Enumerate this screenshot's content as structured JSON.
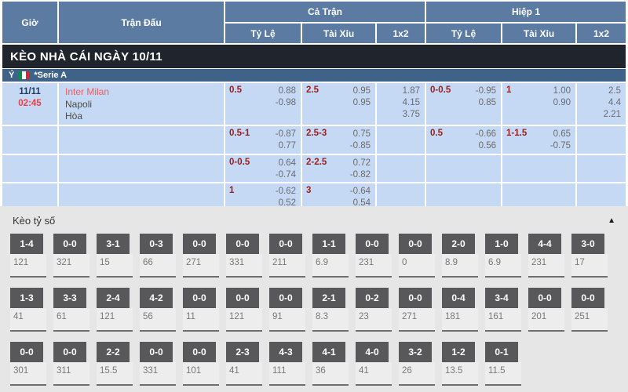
{
  "table_header": {
    "time": "Giờ",
    "match": "Trận Đấu",
    "full_match": "Cả Trận",
    "first_half": "Hiệp 1",
    "odds": "Tỷ Lệ",
    "over_under": "Tài Xỉu",
    "one_x_two": "1x2"
  },
  "banner": {
    "title": "KÈO NHÀ CÁI NGÀY 10/11"
  },
  "league": {
    "country": "Ý",
    "flag": "italy-flag",
    "name": "*Serie A"
  },
  "match": {
    "date": "11/11",
    "time": "02:45",
    "home": "Inter Milan",
    "away": "Napoli",
    "draw": "Hòa"
  },
  "odds_rows": [
    {
      "ft_hdp_line": "0.5",
      "ft_hdp_1": "0.88",
      "ft_hdp_2": "-0.98",
      "ft_ou_line": "2.5",
      "ft_ou_1": "0.95",
      "ft_ou_2": "0.95",
      "ft_1x2": [
        "1.87",
        "4.15",
        "3.75"
      ],
      "h1_hdp_line": "0-0.5",
      "h1_hdp_1": "-0.95",
      "h1_hdp_2": "0.85",
      "h1_ou_line": "1",
      "h1_ou_1": "1.00",
      "h1_ou_2": "0.90",
      "h1_1x2": [
        "2.5",
        "4.4",
        "2.21"
      ]
    },
    {
      "ft_hdp_line": "0.5-1",
      "ft_hdp_1": "-0.87",
      "ft_hdp_2": "0.77",
      "ft_ou_line": "2.5-3",
      "ft_ou_1": "0.75",
      "ft_ou_2": "-0.85",
      "h1_hdp_line": "0.5",
      "h1_hdp_1": "-0.66",
      "h1_hdp_2": "0.56",
      "h1_ou_line": "1-1.5",
      "h1_ou_1": "0.65",
      "h1_ou_2": "-0.75"
    },
    {
      "ft_hdp_line": "0-0.5",
      "ft_hdp_1": "0.64",
      "ft_hdp_2": "-0.74",
      "ft_ou_line": "2-2.5",
      "ft_ou_1": "0.72",
      "ft_ou_2": "-0.82"
    },
    {
      "ft_hdp_line": "1",
      "ft_hdp_1": "-0.62",
      "ft_hdp_2": "0.52",
      "ft_ou_line": "3",
      "ft_ou_1": "-0.64",
      "ft_ou_2": "0.54"
    }
  ],
  "score_section": {
    "title": "Kèo tỷ số",
    "collapse_icon": "▲",
    "rows": [
      [
        {
          "score": "1-4",
          "odds": "121"
        },
        {
          "score": "0-0",
          "odds": "321"
        },
        {
          "score": "3-1",
          "odds": "15"
        },
        {
          "score": "0-3",
          "odds": "66"
        },
        {
          "score": "0-0",
          "odds": "271"
        },
        {
          "score": "0-0",
          "odds": "331"
        },
        {
          "score": "0-0",
          "odds": "211"
        },
        {
          "score": "1-1",
          "odds": "6.9"
        },
        {
          "score": "0-0",
          "odds": "231"
        },
        {
          "score": "0-0",
          "odds": "0"
        },
        {
          "score": "2-0",
          "odds": "8.9"
        },
        {
          "score": "1-0",
          "odds": "6.9"
        },
        {
          "score": "4-4",
          "odds": "231"
        },
        {
          "score": "3-0",
          "odds": "17"
        }
      ],
      [
        {
          "score": "1-3",
          "odds": "41"
        },
        {
          "score": "3-3",
          "odds": "61"
        },
        {
          "score": "2-4",
          "odds": "121"
        },
        {
          "score": "4-2",
          "odds": "56"
        },
        {
          "score": "0-0",
          "odds": "11"
        },
        {
          "score": "0-0",
          "odds": "121"
        },
        {
          "score": "0-0",
          "odds": "91"
        },
        {
          "score": "2-1",
          "odds": "8.3"
        },
        {
          "score": "0-2",
          "odds": "23"
        },
        {
          "score": "0-0",
          "odds": "271"
        },
        {
          "score": "0-4",
          "odds": "181"
        },
        {
          "score": "3-4",
          "odds": "161"
        },
        {
          "score": "0-0",
          "odds": "201"
        },
        {
          "score": "0-0",
          "odds": "251"
        }
      ],
      [
        {
          "score": "0-0",
          "odds": "301"
        },
        {
          "score": "0-0",
          "odds": "311"
        },
        {
          "score": "2-2",
          "odds": "15.5"
        },
        {
          "score": "0-0",
          "odds": "331"
        },
        {
          "score": "0-0",
          "odds": "101"
        },
        {
          "score": "2-3",
          "odds": "41"
        },
        {
          "score": "4-3",
          "odds": "111"
        },
        {
          "score": "4-1",
          "odds": "36"
        },
        {
          "score": "4-0",
          "odds": "41"
        },
        {
          "score": "3-2",
          "odds": "26"
        },
        {
          "score": "1-2",
          "odds": "13.5"
        },
        {
          "score": "0-1",
          "odds": "11.5"
        }
      ]
    ]
  }
}
